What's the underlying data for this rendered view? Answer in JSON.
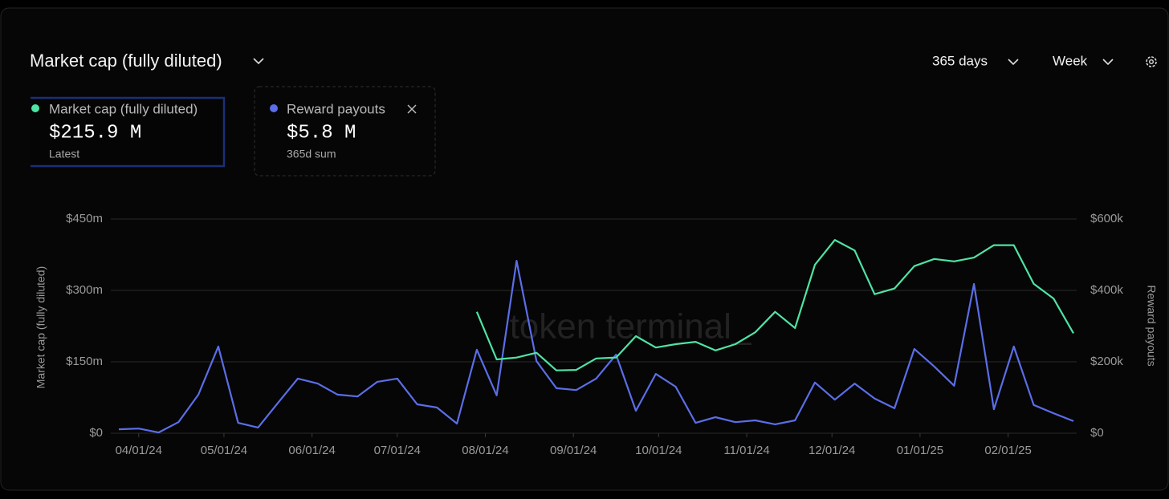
{
  "header": {
    "range": "365 days",
    "interval": "Week"
  },
  "cards": [
    {
      "value": "$215.9 M",
      "note": "Latest"
    },
    {
      "value": "$5.8 M",
      "note": "365d sum"
    }
  ],
  "watermark": "token terminal_",
  "chart_data": {
    "type": "line",
    "title": "Market cap (fully diluted)",
    "ylabel": "Market cap (fully diluted)",
    "y2label": "Reward payouts",
    "grid": true,
    "x": [
      "03/25/24",
      "04/01/24",
      "04/08/24",
      "04/15/24",
      "04/22/24",
      "04/29/24",
      "05/06/24",
      "05/13/24",
      "05/20/24",
      "05/27/24",
      "06/03/24",
      "06/10/24",
      "06/17/24",
      "06/24/24",
      "07/01/24",
      "07/08/24",
      "07/15/24",
      "07/22/24",
      "07/29/24",
      "08/05/24",
      "08/12/24",
      "08/19/24",
      "08/26/24",
      "09/02/24",
      "09/09/24",
      "09/16/24",
      "09/23/24",
      "09/30/24",
      "10/07/24",
      "10/14/24",
      "10/21/24",
      "10/28/24",
      "11/04/24",
      "11/11/24",
      "11/18/24",
      "11/25/24",
      "12/02/24",
      "12/09/24",
      "12/16/24",
      "12/23/24",
      "12/30/24",
      "01/06/25",
      "01/13/25",
      "01/20/25",
      "01/27/25",
      "02/03/25",
      "02/10/25",
      "02/17/25",
      "02/24/25"
    ],
    "xticks": [
      "04/01/24",
      "05/01/24",
      "06/01/24",
      "07/01/24",
      "08/01/24",
      "09/01/24",
      "10/01/24",
      "11/01/24",
      "12/01/24",
      "01/01/25",
      "02/01/25"
    ],
    "ylim": [
      0,
      450000000
    ],
    "yticks": [
      {
        "value": 0,
        "label": "$0"
      },
      {
        "value": 150000000,
        "label": "$150m"
      },
      {
        "value": 300000000,
        "label": "$300m"
      },
      {
        "value": 450000000,
        "label": "$450m"
      }
    ],
    "y2lim": [
      0,
      600000
    ],
    "y2ticks": [
      {
        "value": 0,
        "label": "$0"
      },
      {
        "value": 200000,
        "label": "$200k"
      },
      {
        "value": 400000,
        "label": "$400k"
      },
      {
        "value": 600000,
        "label": "$600k"
      }
    ],
    "series": [
      {
        "name": "Market cap (fully diluted)",
        "color": "#4fe3a5",
        "values": [
          null,
          null,
          null,
          null,
          null,
          null,
          null,
          null,
          null,
          null,
          null,
          null,
          null,
          null,
          null,
          null,
          null,
          null,
          255000000,
          155000000,
          159000000,
          169000000,
          132000000,
          133000000,
          157000000,
          159000000,
          204000000,
          180000000,
          187000000,
          192000000,
          174000000,
          187000000,
          212000000,
          255000000,
          221000000,
          354000000,
          406000000,
          384000000,
          292000000,
          304000000,
          351000000,
          366000000,
          361000000,
          369000000,
          395000000,
          395000000,
          314000000,
          283000000,
          210000000
        ]
      },
      {
        "name": "Reward payouts",
        "color": "#5b6ee8",
        "axis": "y2",
        "values": [
          11000,
          13000,
          2000,
          31000,
          108000,
          243000,
          29000,
          16000,
          85000,
          153000,
          139000,
          108000,
          103000,
          144000,
          153000,
          81000,
          72000,
          27000,
          234000,
          106000,
          483000,
          202000,
          126000,
          121000,
          153000,
          220000,
          63000,
          166000,
          130000,
          29000,
          45000,
          31000,
          36000,
          25000,
          36000,
          142000,
          94000,
          139000,
          97000,
          70000,
          236000,
          187000,
          133000,
          418000,
          67000,
          243000,
          79000,
          56000,
          34000
        ]
      }
    ]
  }
}
